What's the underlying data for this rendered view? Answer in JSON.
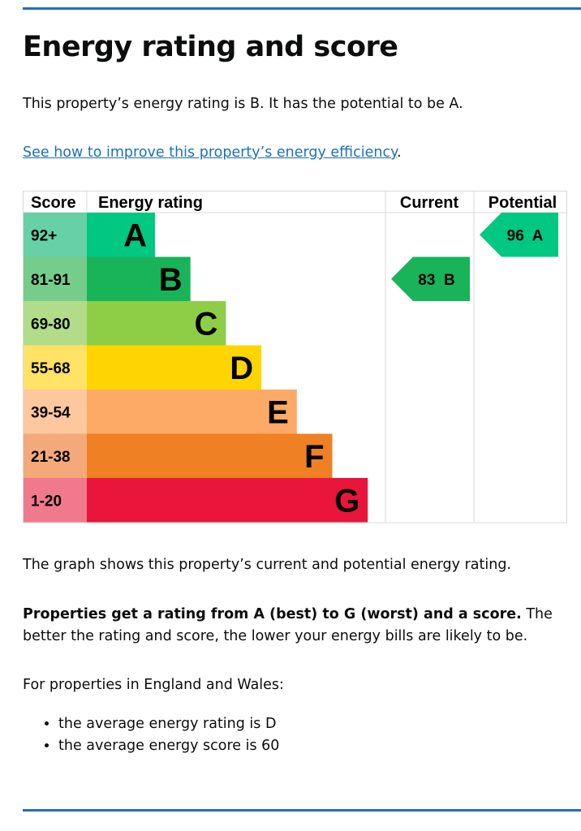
{
  "title": "Energy rating and score",
  "intro": "This property’s energy rating is B. It has the potential to be A.",
  "improve_link": "See how to improve this property’s energy efficiency",
  "improve_link_suffix": ".",
  "chart_data": {
    "type": "table",
    "headers": {
      "score": "Score",
      "rating": "Energy rating",
      "current": "Current",
      "potential": "Potential"
    },
    "bands": [
      {
        "score": "92+",
        "letter": "A",
        "color": "#00c781",
        "score_color": "#66d0a6"
      },
      {
        "score": "81-91",
        "letter": "B",
        "color": "#19b459",
        "score_color": "#75cc8b"
      },
      {
        "score": "69-80",
        "letter": "C",
        "color": "#8dce46",
        "score_color": "#b2dc8a"
      },
      {
        "score": "55-68",
        "letter": "D",
        "color": "#ffd500",
        "score_color": "#ffe266"
      },
      {
        "score": "39-54",
        "letter": "E",
        "color": "#fcaa65",
        "score_color": "#fdc89e"
      },
      {
        "score": "21-38",
        "letter": "F",
        "color": "#ef8023",
        "score_color": "#f4a97a"
      },
      {
        "score": "1-20",
        "letter": "G",
        "color": "#e9153b",
        "score_color": "#f07a8c"
      }
    ],
    "current": {
      "score": 83,
      "letter": "B",
      "label": "83  B",
      "color": "#19b459"
    },
    "potential": {
      "score": 96,
      "letter": "A",
      "label": "96  A",
      "color": "#00c781"
    }
  },
  "graph_note": "The graph shows this property’s current and potential energy rating.",
  "rating_bold": "Properties get a rating from A (best) to G (worst) and a score.",
  "rating_rest": " The better the rating and score, the lower your energy bills are likely to be.",
  "average_intro": "For properties in England and Wales:",
  "averages": [
    "the average energy rating is D",
    "the average energy score is 60"
  ]
}
